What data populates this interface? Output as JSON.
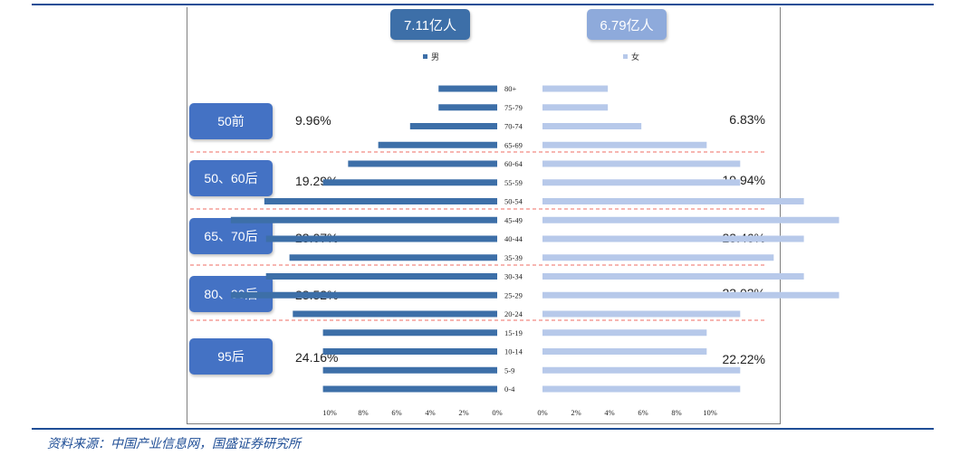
{
  "totals": {
    "male": "7.11亿人",
    "female": "6.79亿人"
  },
  "legend": {
    "male": "男",
    "female": "女"
  },
  "colors": {
    "male": "#3d6fa8",
    "female": "#b7c9ea",
    "male_box": "#3d6fa8",
    "female_box": "#8eaadb",
    "gen_box": "#4472c4",
    "divider": "#f28b82"
  },
  "generations": [
    {
      "label": "50前",
      "male_pct": "9.96%",
      "female_pct": "6.83%"
    },
    {
      "label": "50、60后",
      "male_pct": "19.29%",
      "female_pct": "19.94%"
    },
    {
      "label": "65、70后",
      "male_pct": "23.07%",
      "female_pct": "23.46%"
    },
    {
      "label": "80、90后",
      "male_pct": "23.52%",
      "female_pct": "23.02%"
    },
    {
      "label": "95后",
      "male_pct": "24.16%",
      "female_pct": "22.22%"
    }
  ],
  "chart_data": {
    "type": "bar",
    "orientation": "horizontal population pyramid",
    "categories": [
      "80+",
      "75-79",
      "70-74",
      "65-69",
      "60-64",
      "55-59",
      "50-54",
      "45-49",
      "40-44",
      "35-39",
      "30-34",
      "25-29",
      "20-24",
      "15-19",
      "10-14",
      "5-9",
      "0-4"
    ],
    "series": [
      {
        "name": "男",
        "values": [
          3.5,
          3.5,
          5.2,
          7.1,
          8.9,
          10.4,
          13.9,
          15.9,
          13.8,
          12.4,
          13.8,
          15.9,
          12.2,
          10.4,
          10.4,
          10.4,
          10.4
        ]
      },
      {
        "name": "女",
        "values": [
          3.9,
          3.9,
          5.9,
          9.8,
          11.8,
          11.8,
          15.6,
          17.7,
          15.6,
          13.8,
          15.6,
          17.7,
          11.8,
          9.8,
          9.8,
          11.8,
          11.8
        ]
      }
    ],
    "xticks_left": [
      "10%",
      "8%",
      "6%",
      "4%",
      "2%",
      "0%"
    ],
    "xticks_right": [
      "0%",
      "2%",
      "4%",
      "6%",
      "8%",
      "10%"
    ],
    "xlim": [
      0,
      10
    ],
    "grid": false
  },
  "source": "资料来源：中国产业信息网，国盛证券研究所"
}
